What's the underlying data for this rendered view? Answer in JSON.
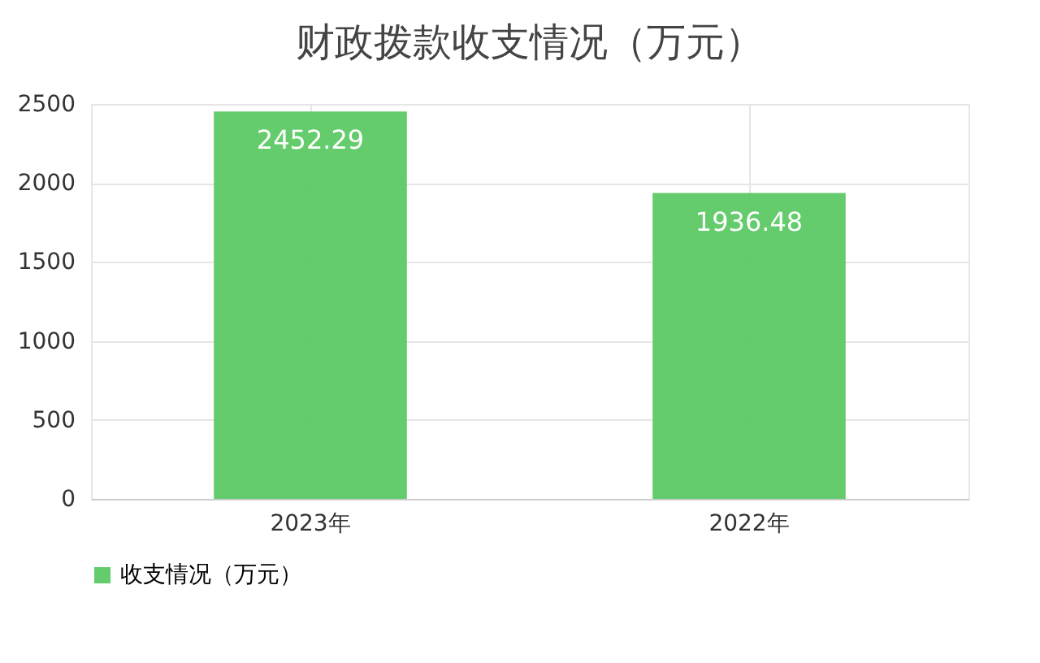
{
  "chart_data": {
    "type": "bar",
    "title": "财政拨款收支情况（万元）",
    "categories": [
      "2023年",
      "2022年"
    ],
    "series": [
      {
        "name": "收支情况（万元）",
        "color": "#5cc964",
        "values": [
          2452.29,
          1936.48
        ]
      }
    ],
    "ylim": [
      0,
      2500
    ],
    "yticks": [
      0,
      500,
      1000,
      1500,
      2000,
      2500
    ],
    "grid": true,
    "legend": "bottom",
    "data_labels": true
  }
}
